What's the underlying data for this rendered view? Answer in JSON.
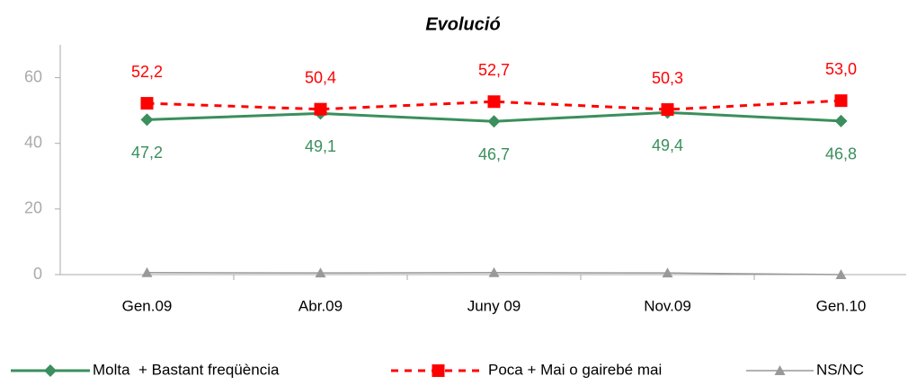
{
  "chart_data": {
    "type": "line",
    "title": "Evolució",
    "categories": [
      "Gen.09",
      "Abr.09",
      "Juny 09",
      "Nov.09",
      "Gen.10"
    ],
    "series": [
      {
        "name": "Molta  + Bastant freqüència",
        "color": "#3a8f5c",
        "marker": "diamond",
        "dashed": false,
        "label_position": "below",
        "values": [
          47.2,
          49.1,
          46.7,
          49.4,
          46.8
        ],
        "value_labels": [
          "47,2",
          "49,1",
          "46,7",
          "49,4",
          "46,8"
        ]
      },
      {
        "name": "Poca + Mai o gairebé mai",
        "color": "#ff0000",
        "marker": "square",
        "dashed": true,
        "label_position": "above",
        "values": [
          52.2,
          50.4,
          52.7,
          50.3,
          53.0
        ],
        "value_labels": [
          "52,2",
          "50,4",
          "52,7",
          "50,3",
          "53,0"
        ]
      },
      {
        "name": "NS/NC",
        "color": "#999999",
        "marker": "triangle",
        "dashed": false,
        "values": [
          0.6,
          0.5,
          0.6,
          0.5,
          0
        ]
      }
    ],
    "ylim": [
      0,
      70
    ],
    "yticks": [
      0,
      20,
      40,
      60
    ]
  }
}
